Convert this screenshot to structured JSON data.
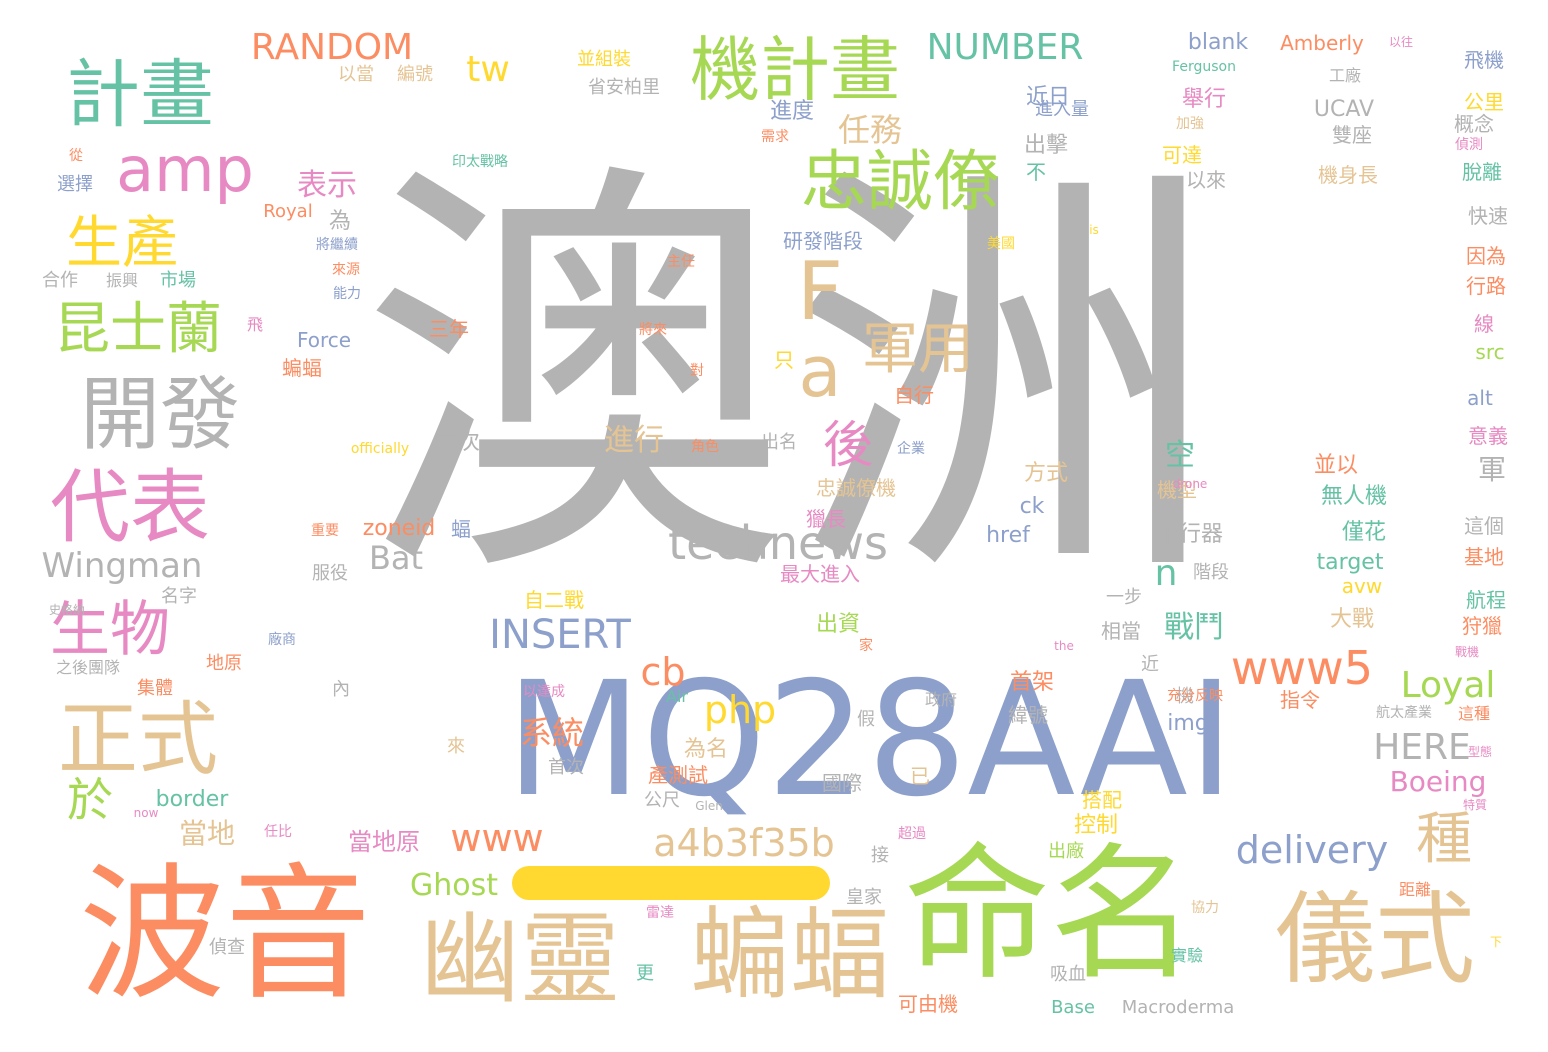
{
  "colors": {
    "gray": "#b3b3b3",
    "blue": "#8da0cb",
    "orange": "#fc8d62",
    "green": "#a6d854",
    "pink": "#e78ac3",
    "tan": "#e5c494",
    "yellow": "#ffd92f",
    "teal": "#66c2a5"
  },
  "dash_color": "#ffd92f",
  "words": [
    {
      "text": "澳洲",
      "color": "gray"
    },
    {
      "text": "MQ28AAI",
      "color": "blue"
    },
    {
      "text": "波音",
      "color": "orange"
    },
    {
      "text": "命名",
      "color": "green"
    },
    {
      "text": "幽靈",
      "color": "tan"
    },
    {
      "text": "蝙蝠",
      "color": "tan"
    },
    {
      "text": "儀式",
      "color": "tan"
    },
    {
      "text": "計畫",
      "color": "teal"
    },
    {
      "text": "機計畫",
      "color": "green"
    },
    {
      "text": "amp",
      "color": "pink"
    },
    {
      "text": "忠誠僚",
      "color": "green"
    },
    {
      "text": "開發",
      "color": "gray"
    },
    {
      "text": "代表",
      "color": "pink"
    },
    {
      "text": "正式",
      "color": "tan"
    },
    {
      "text": "生產",
      "color": "yellow"
    },
    {
      "text": "昆士蘭",
      "color": "green"
    },
    {
      "text": "生物",
      "color": "pink"
    },
    {
      "text": "軍用",
      "color": "tan"
    },
    {
      "text": "F",
      "color": "tan"
    },
    {
      "text": "a",
      "color": "tan"
    },
    {
      "text": "technews",
      "color": "gray"
    },
    {
      "text": "www5",
      "color": "orange"
    },
    {
      "text": "RANDOM",
      "color": "orange"
    },
    {
      "text": "NUMBER",
      "color": "teal"
    },
    {
      "text": "INSERT",
      "color": "blue"
    },
    {
      "text": "a4b3f35b",
      "color": "tan"
    },
    {
      "text": "delivery",
      "color": "blue"
    },
    {
      "text": "種",
      "color": "tan"
    },
    {
      "text": "後",
      "color": "pink"
    },
    {
      "text": "於",
      "color": "green"
    },
    {
      "text": "Wingman",
      "color": "gray"
    },
    {
      "text": "tw",
      "color": "yellow"
    },
    {
      "text": "php",
      "color": "yellow"
    },
    {
      "text": "www",
      "color": "orange"
    },
    {
      "text": "cb",
      "color": "orange"
    },
    {
      "text": "Loyal",
      "color": "green"
    },
    {
      "text": "HERE",
      "color": "gray"
    },
    {
      "text": "Boeing",
      "color": "pink"
    },
    {
      "text": "Ghost",
      "color": "green"
    },
    {
      "text": "Bat",
      "color": "gray"
    },
    {
      "text": "n",
      "color": "teal"
    },
    {
      "text": "任務",
      "color": "tan"
    },
    {
      "text": "表示",
      "color": "pink"
    },
    {
      "text": "進行",
      "color": "tan"
    },
    {
      "text": "戰鬥",
      "color": "teal"
    },
    {
      "text": "系統",
      "color": "orange"
    },
    {
      "text": "空",
      "color": "teal"
    },
    {
      "text": "當地",
      "color": "tan"
    },
    {
      "text": "軍",
      "color": "gray"
    },
    {
      "text": "blank",
      "color": "blue"
    },
    {
      "text": "Amberly",
      "color": "orange"
    },
    {
      "text": "近日",
      "color": "blue"
    },
    {
      "text": "進度",
      "color": "blue"
    },
    {
      "text": "舉行",
      "color": "pink"
    },
    {
      "text": "UCAV",
      "color": "gray"
    },
    {
      "text": "雙座",
      "color": "gray"
    },
    {
      "text": "進入量",
      "color": "blue"
    },
    {
      "text": "出擊",
      "color": "gray"
    },
    {
      "text": "可達",
      "color": "yellow"
    },
    {
      "text": "以來",
      "color": "gray"
    },
    {
      "text": "機身長",
      "color": "tan"
    },
    {
      "text": "研發階段",
      "color": "blue"
    },
    {
      "text": "為",
      "color": "gray"
    },
    {
      "text": "不",
      "color": "teal"
    },
    {
      "text": "飛機",
      "color": "blue"
    },
    {
      "text": "公里",
      "color": "yellow"
    },
    {
      "text": "概念",
      "color": "gray"
    },
    {
      "text": "脫離",
      "color": "teal"
    },
    {
      "text": "快速",
      "color": "gray"
    },
    {
      "text": "因為",
      "color": "orange"
    },
    {
      "text": "行路",
      "color": "orange"
    },
    {
      "text": "線",
      "color": "pink"
    },
    {
      "text": "src",
      "color": "green"
    },
    {
      "text": "alt",
      "color": "blue"
    },
    {
      "text": "意義",
      "color": "pink"
    },
    {
      "text": "這個",
      "color": "gray"
    },
    {
      "text": "基地",
      "color": "orange"
    },
    {
      "text": "航程",
      "color": "teal"
    },
    {
      "text": "狩獵",
      "color": "orange"
    },
    {
      "text": "並以",
      "color": "orange"
    },
    {
      "text": "機型",
      "color": "tan"
    },
    {
      "text": "無人機",
      "color": "teal"
    },
    {
      "text": "僅花",
      "color": "teal"
    },
    {
      "text": "target",
      "color": "teal"
    },
    {
      "text": "avw",
      "color": "yellow"
    },
    {
      "text": "飛行器",
      "color": "gray"
    },
    {
      "text": "階段",
      "color": "gray"
    },
    {
      "text": "忠誠僚機",
      "color": "tan"
    },
    {
      "text": "獵長",
      "color": "pink"
    },
    {
      "text": "最大進入",
      "color": "pink"
    },
    {
      "text": "方式",
      "color": "tan"
    },
    {
      "text": "ck",
      "color": "blue"
    },
    {
      "text": "href",
      "color": "blue"
    },
    {
      "text": "一步",
      "color": "gray"
    },
    {
      "text": "相當",
      "color": "gray"
    },
    {
      "text": "大戰",
      "color": "tan"
    },
    {
      "text": "出資",
      "color": "green"
    },
    {
      "text": "自二戰",
      "color": "yellow"
    },
    {
      "text": "首架",
      "color": "orange"
    },
    {
      "text": "緯號",
      "color": "gray"
    },
    {
      "text": "指令",
      "color": "orange"
    },
    {
      "text": "img",
      "color": "blue"
    },
    {
      "text": "為名",
      "color": "tan"
    },
    {
      "text": "產測試",
      "color": "orange"
    },
    {
      "text": "首次",
      "color": "gray"
    },
    {
      "text": "公尺",
      "color": "gray"
    },
    {
      "text": "國際",
      "color": "gray"
    },
    {
      "text": "搭配",
      "color": "yellow"
    },
    {
      "text": "控制",
      "color": "yellow"
    },
    {
      "text": "出廠",
      "color": "green"
    },
    {
      "text": "當地原",
      "color": "pink"
    },
    {
      "text": "border",
      "color": "teal"
    },
    {
      "text": "zoneid",
      "color": "orange"
    },
    {
      "text": "Force",
      "color": "blue"
    },
    {
      "text": "三年",
      "color": "orange"
    },
    {
      "text": "二次",
      "color": "gray"
    },
    {
      "text": "出名",
      "color": "gray"
    },
    {
      "text": "自行",
      "color": "orange"
    },
    {
      "text": "服役",
      "color": "gray"
    },
    {
      "text": "名字",
      "color": "gray"
    },
    {
      "text": "合作",
      "color": "gray"
    },
    {
      "text": "振興",
      "color": "gray"
    },
    {
      "text": "市場",
      "color": "teal"
    },
    {
      "text": "Royal",
      "color": "orange"
    },
    {
      "text": "以當",
      "color": "tan"
    },
    {
      "text": "編號",
      "color": "tan"
    },
    {
      "text": "並組裝",
      "color": "yellow"
    },
    {
      "text": "省安柏里",
      "color": "gray"
    },
    {
      "text": "選擇",
      "color": "blue"
    },
    {
      "text": "蝙蝠",
      "color": "orange"
    },
    {
      "text": "集體",
      "color": "orange"
    },
    {
      "text": "地原",
      "color": "orange"
    },
    {
      "text": "接",
      "color": "gray"
    },
    {
      "text": "皇家",
      "color": "gray"
    },
    {
      "text": "偵查",
      "color": "gray"
    },
    {
      "text": "可由機",
      "color": "orange"
    },
    {
      "text": "吸血",
      "color": "gray"
    },
    {
      "text": "Base",
      "color": "teal"
    },
    {
      "text": "Macroderma",
      "color": "gray"
    },
    {
      "text": "實驗",
      "color": "teal"
    },
    {
      "text": "距離",
      "color": "orange"
    },
    {
      "text": "這種",
      "color": "orange"
    },
    {
      "text": "航太產業",
      "color": "gray"
    },
    {
      "text": "工廠",
      "color": "gray"
    },
    {
      "text": "Ferguson",
      "color": "teal"
    },
    {
      "text": "以往",
      "color": "pink"
    },
    {
      "text": "Air",
      "color": "teal"
    },
    {
      "text": "Glen",
      "color": "gray"
    },
    {
      "text": "officially",
      "color": "yellow"
    },
    {
      "text": "drone",
      "color": "pink"
    },
    {
      "text": "now",
      "color": "pink"
    },
    {
      "text": "the",
      "color": "pink"
    },
    {
      "text": "is",
      "color": "yellow"
    },
    {
      "text": "印太戰略",
      "color": "teal"
    },
    {
      "text": "主任",
      "color": "orange"
    },
    {
      "text": "將繼續",
      "color": "blue"
    },
    {
      "text": "來源",
      "color": "orange"
    },
    {
      "text": "能力",
      "color": "blue"
    },
    {
      "text": "飛",
      "color": "pink"
    },
    {
      "text": "將來",
      "color": "orange"
    },
    {
      "text": "對",
      "color": "orange"
    },
    {
      "text": "只",
      "color": "yellow"
    },
    {
      "text": "角色",
      "color": "orange"
    },
    {
      "text": "企業",
      "color": "blue"
    },
    {
      "text": "美國",
      "color": "yellow"
    },
    {
      "text": "需求",
      "color": "orange"
    },
    {
      "text": "加強",
      "color": "tan"
    },
    {
      "text": "偵測",
      "color": "pink"
    },
    {
      "text": "從",
      "color": "orange"
    },
    {
      "text": "重要",
      "color": "orange"
    },
    {
      "text": "蝠",
      "color": "blue"
    },
    {
      "text": "家",
      "color": "orange"
    },
    {
      "text": "內",
      "color": "gray"
    },
    {
      "text": "假",
      "color": "gray"
    },
    {
      "text": "已",
      "color": "tan"
    },
    {
      "text": "來",
      "color": "tan"
    },
    {
      "text": "更",
      "color": "teal"
    },
    {
      "text": "近",
      "color": "gray"
    },
    {
      "text": "機",
      "color": "gray"
    },
    {
      "text": "政府",
      "color": "gray"
    },
    {
      "text": "以達成",
      "color": "pink"
    },
    {
      "text": "充分反映",
      "color": "orange"
    },
    {
      "text": "超過",
      "color": "pink"
    },
    {
      "text": "雷達",
      "color": "pink"
    },
    {
      "text": "協力",
      "color": "tan"
    },
    {
      "text": "下",
      "color": "yellow"
    },
    {
      "text": "特質",
      "color": "pink"
    },
    {
      "text": "型態",
      "color": "pink"
    },
    {
      "text": "戰機",
      "color": "pink"
    },
    {
      "text": "任比",
      "color": "pink"
    },
    {
      "text": "廠商",
      "color": "blue"
    },
    {
      "text": "史格納",
      "color": "gray"
    },
    {
      "text": "之後團隊",
      "color": "gray"
    }
  ]
}
